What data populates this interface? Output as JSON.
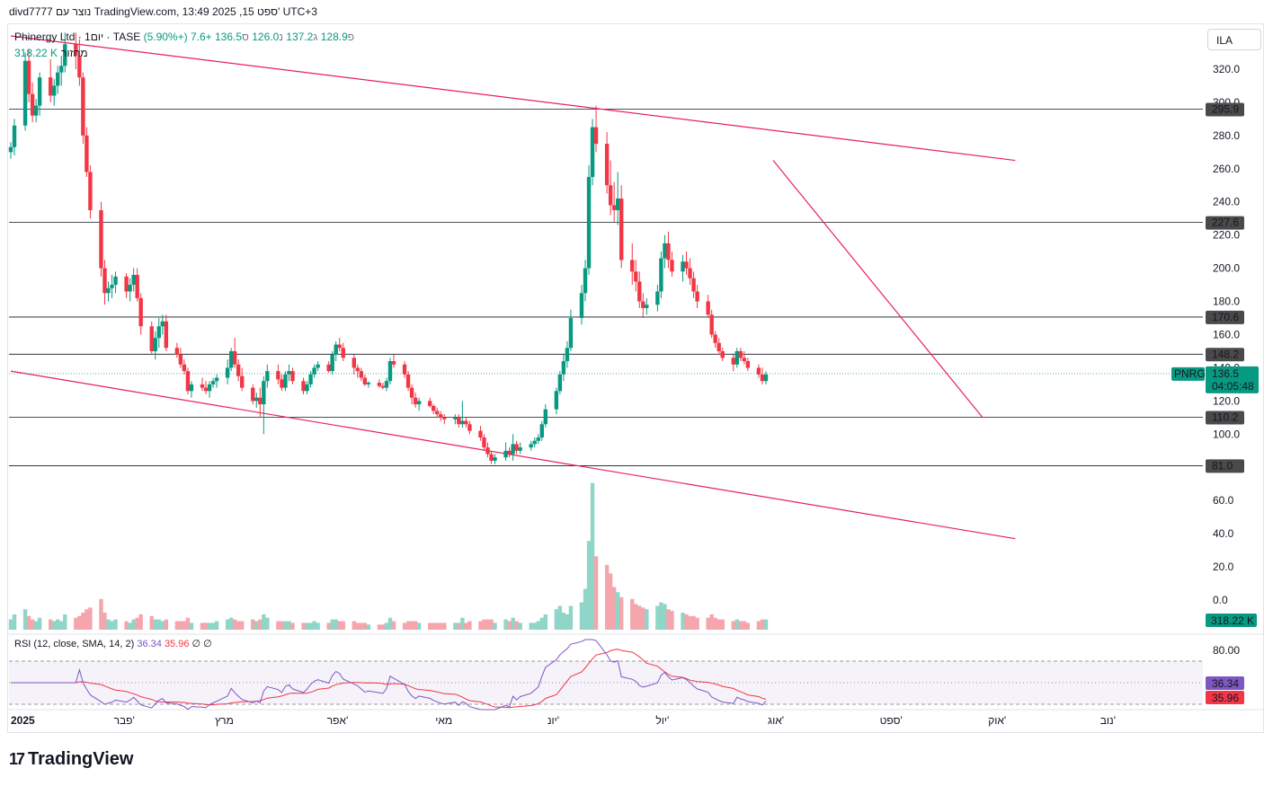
{
  "header": {
    "attribution": "divd7777 נוצר עם TradingView.com, 13:49 2025 ,15 ספט' UTC+3"
  },
  "legend": {
    "symbol": "Phinergy Ltd · 1יום · TASE",
    "open_label": "פ",
    "open": "128.9",
    "high_label": "ג",
    "high": "137.2",
    "low_label": "נ",
    "low": "126.0",
    "close_label": "ס",
    "close": "136.5",
    "change": "+7.6 (+5.90%)"
  },
  "volume_legend": {
    "label": "מחזור",
    "value": "318.22 K"
  },
  "currency_button": "ILA",
  "rsi_legend": {
    "label": "RSI (12, close, SMA, 14, 2)",
    "rsi": "36.34",
    "sma": "35.96",
    "extra": "∅ ∅"
  },
  "brand": {
    "name": "TradingView",
    "mark": "17"
  },
  "colors": {
    "up": "#089981",
    "down": "#f23645",
    "trendline": "#e91e63",
    "rsi_line": "#7e57c2",
    "rsi_sma": "#f23645"
  },
  "chart_data": {
    "type": "candlestick",
    "symbol": "PNRG",
    "price_axis": {
      "ticks": [
        "320.0",
        "300.0",
        "280.0",
        "260.0",
        "240.0",
        "220.0",
        "200.0",
        "180.0",
        "160.0",
        "140.0",
        "120.0",
        "100.0",
        "80.0",
        "60.0",
        "40.0",
        "20.0",
        "0.0"
      ],
      "range": [
        -20,
        340
      ]
    },
    "horizontal_levels": [
      "295.9",
      "227.6",
      "170.6",
      "148.2",
      "110.2",
      "81.0"
    ],
    "price_tag": {
      "symbol": "PNRG",
      "value": "136.5",
      "countdown": "04:05:48"
    },
    "volume_tag": "318.22 K",
    "x_labels": [
      "2025",
      "פבר'",
      "מרץ",
      "אפר'",
      "מאי",
      "יונ'",
      "יול'",
      "אוג'",
      "ספט'",
      "אוק'",
      "נוב'"
    ],
    "trendlines": [
      {
        "from": [
          "2025-01-01",
          340
        ],
        "to": [
          "2025-10-06",
          265
        ]
      },
      {
        "from": [
          "2025-01-01",
          138
        ],
        "to": [
          "2025-10-06",
          37
        ]
      },
      {
        "from": [
          "2025-07-31",
          265
        ],
        "to": [
          "2025-09-27",
          110
        ]
      }
    ],
    "ohlcv": [
      [
        "2025-01-01",
        270,
        276,
        266,
        273,
        6
      ],
      [
        "2025-01-02",
        273,
        290,
        268,
        286,
        9
      ],
      [
        "2025-01-05",
        286,
        330,
        283,
        325,
        12
      ],
      [
        "2025-01-06",
        325,
        332,
        300,
        305,
        8
      ],
      [
        "2025-01-07",
        305,
        312,
        288,
        292,
        6
      ],
      [
        "2025-01-08",
        292,
        302,
        288,
        298,
        5
      ],
      [
        "2025-01-09",
        298,
        318,
        292,
        315,
        7
      ],
      [
        "2025-01-12",
        315,
        326,
        300,
        304,
        6
      ],
      [
        "2025-01-13",
        304,
        314,
        298,
        310,
        5
      ],
      [
        "2025-01-14",
        310,
        322,
        305,
        318,
        6
      ],
      [
        "2025-01-15",
        318,
        328,
        310,
        322,
        5
      ],
      [
        "2025-01-16",
        322,
        342,
        318,
        335,
        9
      ],
      [
        "2025-01-19",
        335,
        342,
        320,
        328,
        7
      ],
      [
        "2025-01-20",
        328,
        338,
        310,
        315,
        8
      ],
      [
        "2025-01-21",
        315,
        318,
        275,
        280,
        10
      ],
      [
        "2025-01-22",
        280,
        285,
        255,
        258,
        12
      ],
      [
        "2025-01-23",
        258,
        262,
        230,
        235,
        13
      ],
      [
        "2025-01-26",
        235,
        240,
        195,
        200,
        18
      ],
      [
        "2025-01-27",
        200,
        205,
        178,
        185,
        10
      ],
      [
        "2025-01-28",
        185,
        192,
        180,
        188,
        6
      ],
      [
        "2025-01-29",
        188,
        196,
        182,
        190,
        5
      ],
      [
        "2025-01-30",
        190,
        198,
        185,
        195,
        6
      ],
      [
        "2025-02-02",
        195,
        197,
        182,
        186,
        5
      ],
      [
        "2025-02-03",
        186,
        194,
        180,
        190,
        4
      ],
      [
        "2025-02-04",
        190,
        200,
        186,
        196,
        6
      ],
      [
        "2025-02-05",
        196,
        200,
        180,
        182,
        7
      ],
      [
        "2025-02-06",
        182,
        185,
        160,
        165,
        9
      ],
      [
        "2025-02-09",
        165,
        168,
        148,
        150,
        8
      ],
      [
        "2025-02-10",
        150,
        162,
        145,
        158,
        6
      ],
      [
        "2025-02-11",
        158,
        170,
        152,
        165,
        6
      ],
      [
        "2025-02-12",
        165,
        172,
        160,
        168,
        5
      ],
      [
        "2025-02-13",
        168,
        172,
        150,
        152,
        6
      ],
      [
        "2025-02-16",
        152,
        155,
        146,
        148,
        5
      ],
      [
        "2025-02-17",
        148,
        152,
        140,
        142,
        5
      ],
      [
        "2025-02-18",
        142,
        145,
        136,
        138,
        5
      ],
      [
        "2025-02-19",
        138,
        140,
        124,
        126,
        7
      ],
      [
        "2025-02-20",
        126,
        132,
        122,
        130,
        4
      ],
      [
        "2025-02-23",
        130,
        134,
        126,
        128,
        4
      ],
      [
        "2025-02-24",
        128,
        132,
        124,
        126,
        4
      ],
      [
        "2025-02-25",
        126,
        132,
        122,
        130,
        4
      ],
      [
        "2025-02-26",
        130,
        134,
        128,
        132,
        4
      ],
      [
        "2025-02-27",
        132,
        136,
        128,
        134,
        5
      ],
      [
        "2025-03-02",
        134,
        145,
        130,
        140,
        6
      ],
      [
        "2025-03-03",
        140,
        152,
        138,
        150,
        7
      ],
      [
        "2025-03-04",
        150,
        158,
        140,
        142,
        6
      ],
      [
        "2025-03-05",
        142,
        145,
        132,
        135,
        5
      ],
      [
        "2025-03-06",
        135,
        140,
        126,
        128,
        5
      ],
      [
        "2025-03-09",
        128,
        130,
        118,
        120,
        6
      ],
      [
        "2025-03-10",
        120,
        125,
        116,
        122,
        5
      ],
      [
        "2025-03-11",
        122,
        128,
        110,
        118,
        6
      ],
      [
        "2025-03-12",
        118,
        135,
        100,
        132,
        9
      ],
      [
        "2025-03-13",
        132,
        142,
        128,
        138,
        7
      ],
      [
        "2025-03-16",
        138,
        142,
        130,
        133,
        5
      ],
      [
        "2025-03-17",
        133,
        136,
        126,
        128,
        5
      ],
      [
        "2025-03-18",
        128,
        138,
        126,
        136,
        5
      ],
      [
        "2025-03-19",
        136,
        142,
        132,
        138,
        5
      ],
      [
        "2025-03-20",
        138,
        140,
        130,
        132,
        4
      ],
      [
        "2025-03-23",
        132,
        134,
        124,
        126,
        4
      ],
      [
        "2025-03-24",
        126,
        132,
        124,
        130,
        4
      ],
      [
        "2025-03-25",
        130,
        138,
        128,
        136,
        4
      ],
      [
        "2025-03-26",
        136,
        142,
        134,
        140,
        5
      ],
      [
        "2025-03-27",
        140,
        144,
        138,
        142,
        4
      ],
      [
        "2025-03-30",
        142,
        144,
        137,
        138,
        4
      ],
      [
        "2025-03-31",
        138,
        150,
        136,
        148,
        6
      ],
      [
        "2025-04-01",
        148,
        156,
        144,
        154,
        6
      ],
      [
        "2025-04-02",
        154,
        158,
        150,
        152,
        5
      ],
      [
        "2025-04-03",
        152,
        155,
        144,
        146,
        5
      ],
      [
        "2025-04-06",
        146,
        148,
        136,
        140,
        5
      ],
      [
        "2025-04-07",
        140,
        142,
        134,
        138,
        4
      ],
      [
        "2025-04-08",
        138,
        140,
        132,
        134,
        4
      ],
      [
        "2025-04-09",
        134,
        136,
        129,
        130,
        4
      ],
      [
        "2025-04-10",
        130,
        132,
        128,
        131,
        3
      ],
      [
        "2025-04-13",
        131,
        133,
        128,
        129,
        3
      ],
      [
        "2025-04-14",
        129,
        131,
        127,
        128,
        3
      ],
      [
        "2025-04-15",
        128,
        134,
        126,
        132,
        4
      ],
      [
        "2025-04-16",
        132,
        146,
        130,
        144,
        7
      ],
      [
        "2025-04-17",
        144,
        148,
        140,
        142,
        5
      ],
      [
        "2025-04-20",
        142,
        144,
        134,
        136,
        4
      ],
      [
        "2025-04-21",
        136,
        138,
        126,
        128,
        5
      ],
      [
        "2025-04-22",
        128,
        130,
        118,
        122,
        5
      ],
      [
        "2025-04-23",
        122,
        125,
        116,
        118,
        5
      ],
      [
        "2025-04-24",
        118,
        122,
        114,
        120,
        4
      ],
      [
        "2025-04-27",
        120,
        122,
        116,
        117,
        4
      ],
      [
        "2025-04-28",
        117,
        118,
        112,
        114,
        4
      ],
      [
        "2025-04-29",
        114,
        116,
        110,
        112,
        4
      ],
      [
        "2025-04-30",
        112,
        114,
        108,
        110,
        4
      ],
      [
        "2025-05-01",
        110,
        112,
        106,
        109,
        4
      ],
      [
        "2025-05-04",
        109,
        112,
        106,
        110,
        4
      ],
      [
        "2025-05-05",
        110,
        112,
        104,
        106,
        4
      ],
      [
        "2025-05-06",
        106,
        120,
        104,
        108,
        7
      ],
      [
        "2025-05-07",
        108,
        110,
        104,
        106,
        4
      ],
      [
        "2025-05-08",
        106,
        108,
        100,
        102,
        5
      ],
      [
        "2025-05-11",
        102,
        105,
        96,
        98,
        5
      ],
      [
        "2025-05-12",
        98,
        100,
        90,
        92,
        6
      ],
      [
        "2025-05-13",
        92,
        95,
        86,
        88,
        6
      ],
      [
        "2025-05-14",
        88,
        90,
        82,
        84,
        6
      ],
      [
        "2025-05-15",
        84,
        88,
        82,
        86,
        4
      ],
      [
        "2025-05-18",
        86,
        95,
        84,
        90,
        6
      ],
      [
        "2025-05-19",
        90,
        92,
        86,
        88,
        5
      ],
      [
        "2025-05-20",
        88,
        100,
        84,
        94,
        7
      ],
      [
        "2025-05-21",
        94,
        96,
        88,
        90,
        5
      ],
      [
        "2025-05-22",
        90,
        95,
        88,
        92,
        4
      ],
      [
        "2025-05-25",
        92,
        96,
        90,
        94,
        4
      ],
      [
        "2025-05-26",
        94,
        98,
        92,
        96,
        4
      ],
      [
        "2025-05-27",
        96,
        100,
        94,
        98,
        5
      ],
      [
        "2025-05-28",
        98,
        108,
        96,
        106,
        7
      ],
      [
        "2025-05-29",
        106,
        118,
        104,
        115,
        9
      ],
      [
        "2025-06-01",
        115,
        128,
        112,
        126,
        12
      ],
      [
        "2025-06-02",
        126,
        138,
        124,
        136,
        14
      ],
      [
        "2025-06-03",
        136,
        148,
        132,
        144,
        10
      ],
      [
        "2025-06-04",
        144,
        156,
        140,
        152,
        9
      ],
      [
        "2025-06-05",
        152,
        175,
        150,
        170,
        14
      ],
      [
        "2025-06-08",
        170,
        190,
        166,
        185,
        16
      ],
      [
        "2025-06-09",
        185,
        205,
        180,
        200,
        24
      ],
      [
        "2025-06-10",
        200,
        262,
        196,
        255,
        52
      ],
      [
        "2025-06-11",
        255,
        290,
        250,
        285,
        86
      ],
      [
        "2025-06-12",
        285,
        298,
        270,
        275,
        43
      ],
      [
        "2025-06-15",
        275,
        282,
        245,
        250,
        38
      ],
      [
        "2025-06-16",
        250,
        265,
        232,
        238,
        33
      ],
      [
        "2025-06-17",
        238,
        252,
        228,
        235,
        25
      ],
      [
        "2025-06-18",
        235,
        258,
        226,
        242,
        22
      ],
      [
        "2025-06-19",
        242,
        250,
        200,
        205,
        19
      ],
      [
        "2025-06-22",
        205,
        215,
        190,
        198,
        18
      ],
      [
        "2025-06-23",
        198,
        205,
        186,
        192,
        15
      ],
      [
        "2025-06-24",
        192,
        198,
        176,
        180,
        14
      ],
      [
        "2025-06-25",
        180,
        185,
        170,
        176,
        13
      ],
      [
        "2025-06-26",
        176,
        182,
        172,
        178,
        12
      ],
      [
        "2025-06-29",
        178,
        190,
        174,
        186,
        14
      ],
      [
        "2025-06-30",
        186,
        210,
        182,
        206,
        16
      ],
      [
        "2025-07-01",
        206,
        220,
        200,
        215,
        15
      ],
      [
        "2025-07-02",
        215,
        222,
        200,
        205,
        12
      ],
      [
        "2025-07-03",
        205,
        210,
        195,
        198,
        11
      ],
      [
        "2025-07-06",
        198,
        208,
        192,
        204,
        10
      ],
      [
        "2025-07-07",
        204,
        210,
        196,
        200,
        9
      ],
      [
        "2025-07-08",
        200,
        206,
        190,
        194,
        8
      ],
      [
        "2025-07-09",
        194,
        198,
        182,
        186,
        8
      ],
      [
        "2025-07-10",
        186,
        190,
        176,
        180,
        7
      ],
      [
        "2025-07-13",
        180,
        184,
        170,
        172,
        7
      ],
      [
        "2025-07-14",
        172,
        175,
        158,
        160,
        9
      ],
      [
        "2025-07-15",
        160,
        162,
        152,
        155,
        7
      ],
      [
        "2025-07-16",
        155,
        158,
        148,
        150,
        6
      ],
      [
        "2025-07-17",
        150,
        152,
        144,
        146,
        6
      ],
      [
        "2025-07-20",
        146,
        148,
        138,
        142,
        5
      ],
      [
        "2025-07-21",
        142,
        152,
        140,
        150,
        6
      ],
      [
        "2025-07-22",
        150,
        152,
        144,
        146,
        5
      ],
      [
        "2025-07-23",
        146,
        150,
        142,
        144,
        5
      ],
      [
        "2025-07-24",
        144,
        146,
        138,
        140,
        4
      ],
      [
        "2025-07-27",
        140,
        142,
        134,
        136,
        5
      ],
      [
        "2025-07-28",
        136,
        140,
        130,
        132,
        6
      ],
      [
        "2025-07-29",
        132,
        138,
        130,
        136,
        6
      ]
    ],
    "rsi": {
      "label": "RSI (12, close, SMA, 14, 2)",
      "ticks": [
        "80.00"
      ],
      "bands": [
        70,
        50,
        30
      ],
      "range": [
        25,
        90
      ],
      "value": "36.34",
      "sma_value": "35.96"
    }
  }
}
